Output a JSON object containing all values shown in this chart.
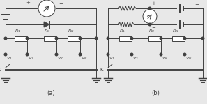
{
  "fig_width": 2.97,
  "fig_height": 1.49,
  "dpi": 100,
  "bg_color": "#e8e8e8",
  "line_color": "#404040",
  "label_a": "(a)",
  "label_b": "(b)"
}
